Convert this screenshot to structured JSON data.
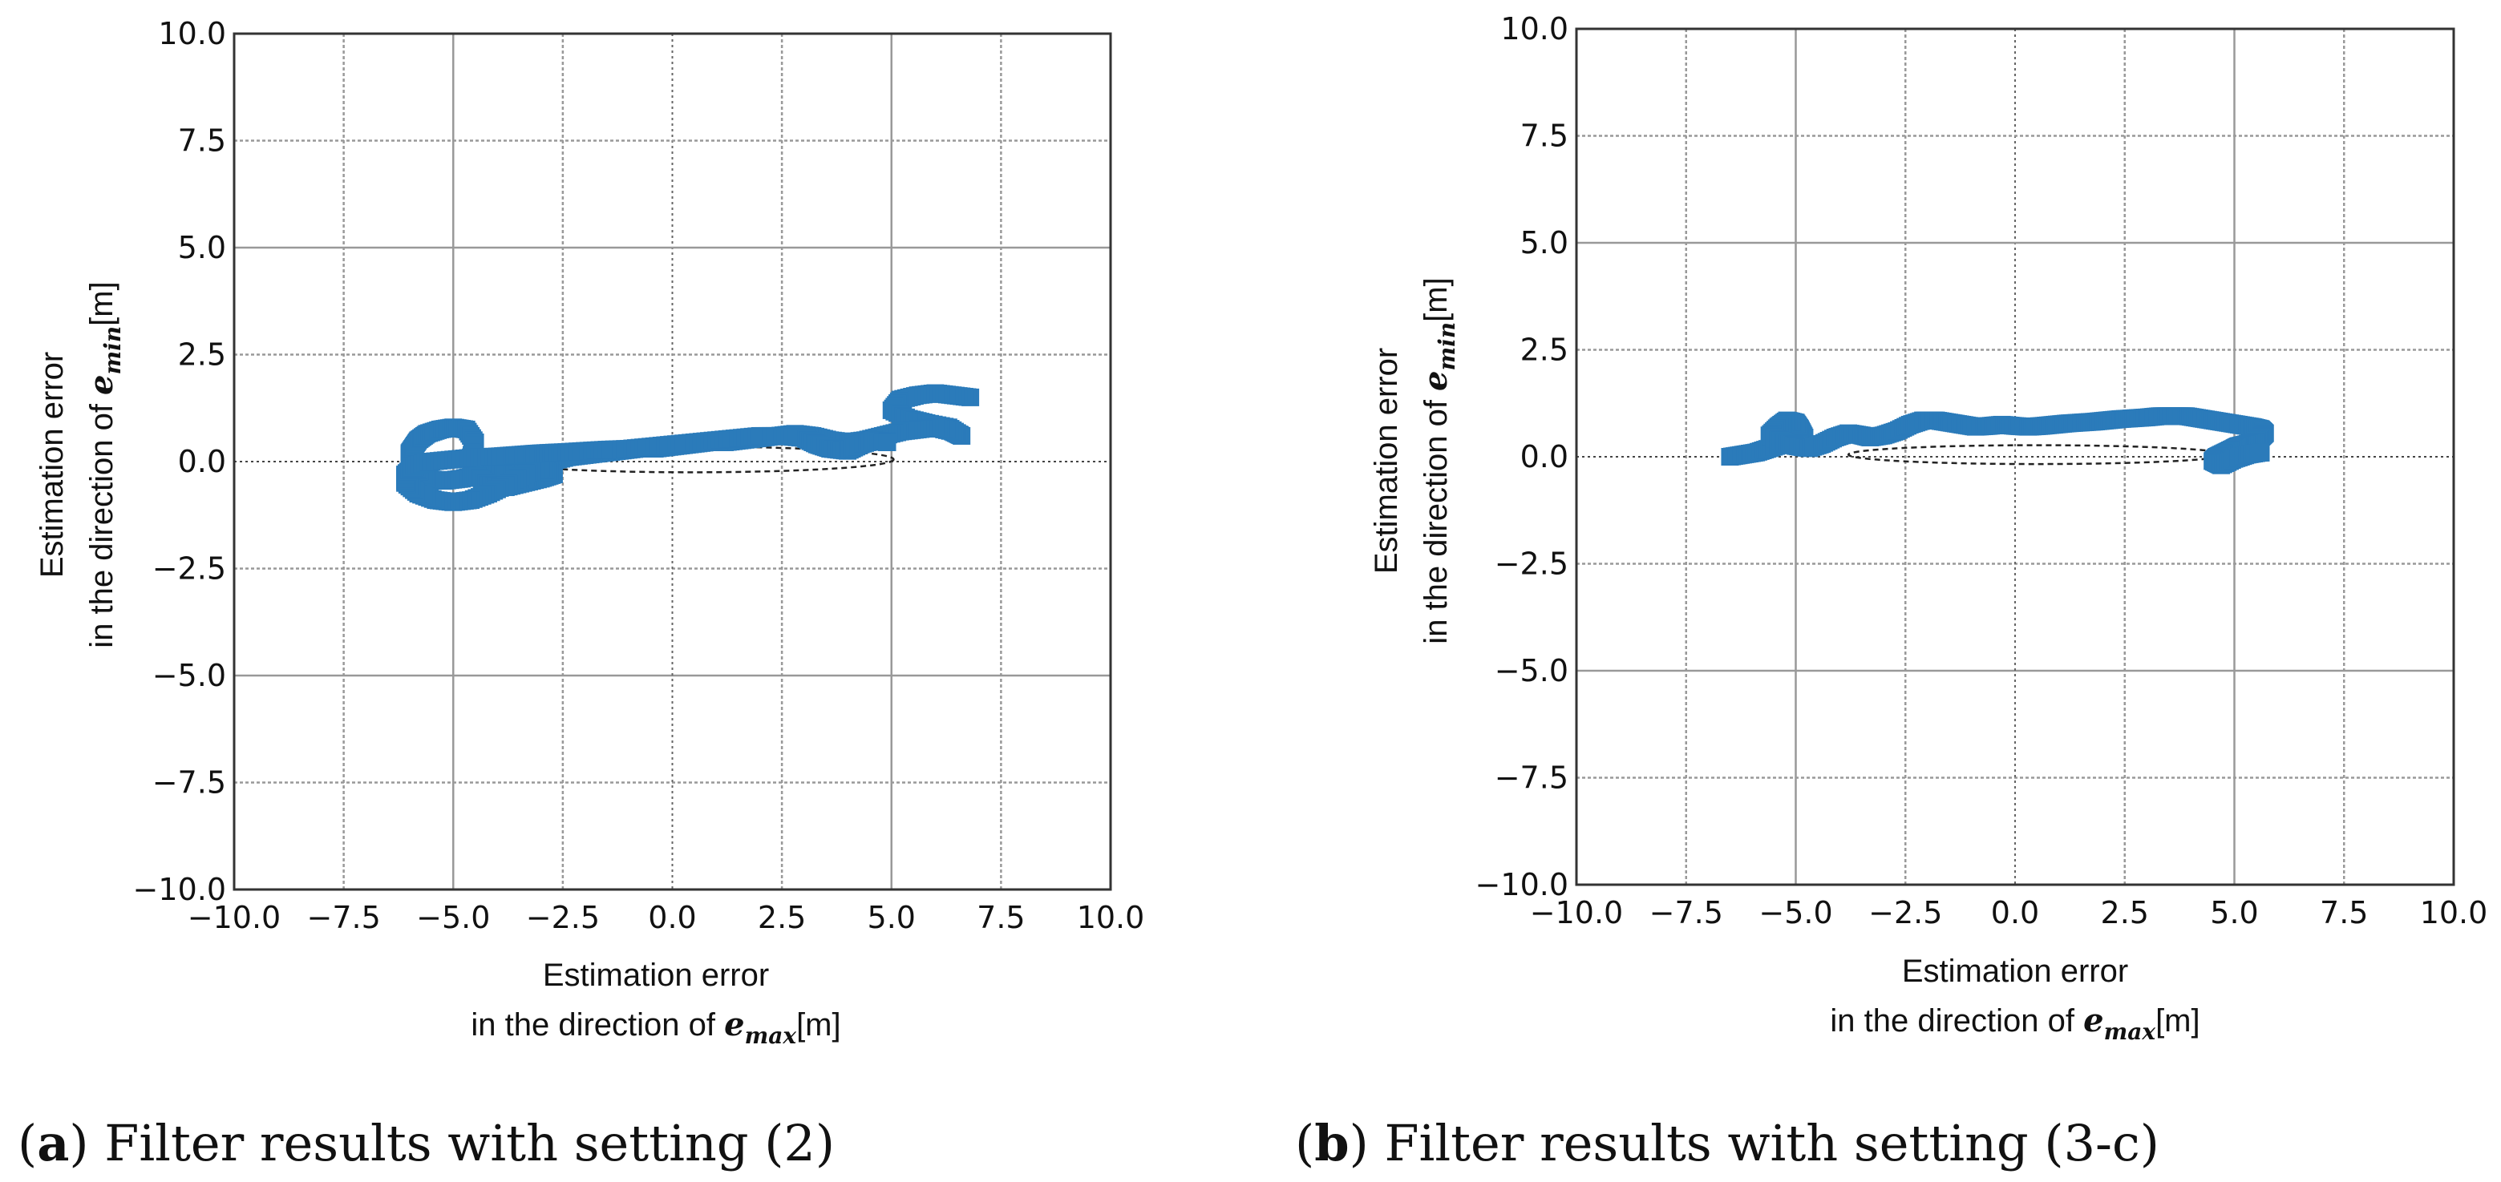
{
  "chart_data": [
    {
      "type": "scatter",
      "panel": "a",
      "caption_letter": "a",
      "caption_text": "Filter results with setting (2)",
      "xlabel": {
        "line1": "Estimation error",
        "line2_prefix": "in the direction of ",
        "symbol": "e",
        "subscript": "max",
        "unit": "[m]"
      },
      "ylabel": {
        "line1": "Estimation error",
        "line2_prefix": "in the direction of ",
        "symbol": "e",
        "subscript": "min",
        "unit": "[m]"
      },
      "xlim": [
        -10,
        10
      ],
      "ylim": [
        -10,
        10
      ],
      "xticks": [
        "−10.0",
        "−7.5",
        "−5.0",
        "−2.5",
        "0.0",
        "2.5",
        "5.0",
        "7.5",
        "10.0"
      ],
      "yticks": [
        "−10.0",
        "−7.5",
        "−5.0",
        "−2.5",
        "0.0",
        "2.5",
        "5.0",
        "7.5",
        "10.0"
      ],
      "grid": true,
      "series_color": "#2b7bba",
      "series": [
        {
          "name": "estimation error",
          "x": [
            6.8,
            6.4,
            6.0,
            5.6,
            5.2,
            5.0,
            5.4,
            5.8,
            6.3,
            6.6,
            6.4,
            6.0,
            5.6,
            5.2,
            4.8,
            4.4,
            4.0,
            3.6,
            3.2,
            2.8,
            2.4,
            2.0,
            1.6,
            1.2,
            0.8,
            0.4,
            0.0,
            -0.4,
            -0.8,
            -1.2,
            -1.6,
            -2.0,
            -2.4,
            -2.8,
            -3.2,
            -3.6,
            -4.0,
            -4.4,
            -4.8,
            -5.2,
            -5.6,
            -5.8,
            -6.0,
            -6.0,
            -5.9,
            -5.8,
            -5.6,
            -5.3,
            -5.0,
            -4.7,
            -4.5,
            -4.6,
            -4.5,
            -4.2,
            -3.8,
            -3.4,
            -3.0,
            -2.7,
            -3.0,
            -3.4,
            -3.8,
            -4.2,
            -4.6,
            -5.0,
            -5.4,
            -5.8,
            -6.1,
            -6.1,
            -5.9,
            -5.5,
            -5.0,
            -4.5,
            -4.0,
            -3.6,
            -3.2,
            -2.9,
            -2.5,
            -2.0,
            -1.5,
            -1.0,
            -0.5,
            0.0,
            0.5,
            1.0,
            1.5,
            2.0,
            2.5,
            3.0,
            3.3,
            3.6,
            4.0,
            4.3,
            4.6,
            4.9
          ],
          "y": [
            1.5,
            1.55,
            1.6,
            1.55,
            1.45,
            1.2,
            1.0,
            0.9,
            0.8,
            0.6,
            0.7,
            0.8,
            0.75,
            0.7,
            0.6,
            0.5,
            0.45,
            0.5,
            0.6,
            0.65,
            0.6,
            0.55,
            0.5,
            0.45,
            0.45,
            0.4,
            0.35,
            0.3,
            0.3,
            0.25,
            0.2,
            0.15,
            0.1,
            0.0,
            -0.1,
            -0.2,
            -0.25,
            -0.3,
            -0.4,
            -0.45,
            -0.4,
            -0.2,
            0.0,
            0.2,
            0.35,
            0.5,
            0.65,
            0.75,
            0.8,
            0.75,
            0.45,
            0.1,
            -0.3,
            -0.55,
            -0.6,
            -0.5,
            -0.4,
            -0.3,
            -0.15,
            -0.3,
            -0.55,
            -0.75,
            -0.9,
            -0.95,
            -0.9,
            -0.75,
            -0.5,
            -0.3,
            -0.1,
            0.0,
            0.05,
            0.1,
            0.12,
            0.15,
            0.18,
            0.2,
            0.22,
            0.25,
            0.28,
            0.3,
            0.35,
            0.4,
            0.45,
            0.5,
            0.55,
            0.6,
            0.6,
            0.55,
            0.4,
            0.3,
            0.25,
            0.4,
            0.5,
            0.45
          ]
        }
      ],
      "ellipse": {
        "cx": 0.45,
        "cy": 0.05,
        "rx": 4.6,
        "ry": 0.3,
        "style": "dashed"
      }
    },
    {
      "type": "scatter",
      "panel": "b",
      "caption_letter": "b",
      "caption_text": "Filter results with setting (3-c)",
      "xlabel": {
        "line1": "Estimation error",
        "line2_prefix": "in the direction of ",
        "symbol": "e",
        "subscript": "max",
        "unit": "[m]"
      },
      "ylabel": {
        "line1": "Estimation error",
        "line2_prefix": "in the direction of ",
        "symbol": "e",
        "subscript": "min",
        "unit": "[m]"
      },
      "xlim": [
        -10,
        10
      ],
      "ylim": [
        -10,
        10
      ],
      "xticks": [
        "−10.0",
        "−7.5",
        "−5.0",
        "−2.5",
        "0.0",
        "2.5",
        "5.0",
        "7.5",
        "10.0"
      ],
      "yticks": [
        "−10.0",
        "−7.5",
        "−5.0",
        "−2.5",
        "0.0",
        "2.5",
        "5.0",
        "7.5",
        "10.0"
      ],
      "grid": true,
      "series_color": "#2b7bba",
      "series": [
        {
          "name": "estimation error",
          "x": [
            -6.5,
            -6.2,
            -5.9,
            -5.6,
            -5.3,
            -5.0,
            -4.8,
            -4.9,
            -5.0,
            -5.2,
            -5.4,
            -5.6,
            -5.3,
            -5.0,
            -4.7,
            -4.4,
            -4.1,
            -3.8,
            -3.5,
            -3.3,
            -3.0,
            -2.7,
            -2.4,
            -2.1,
            -1.8,
            -1.5,
            -1.2,
            -0.9,
            -0.6,
            -0.3,
            0.0,
            0.3,
            0.6,
            0.9,
            1.2,
            1.5,
            1.8,
            2.1,
            2.4,
            2.7,
            3.0,
            3.3,
            3.6,
            3.9,
            4.2,
            4.5,
            4.8,
            5.1,
            5.4,
            5.6,
            5.7,
            5.6,
            5.5,
            5.3,
            5.1,
            5.0,
            4.8,
            4.6,
            4.5,
            4.7,
            5.0,
            5.3,
            5.6
          ],
          "y": [
            0.0,
            0.05,
            0.1,
            0.2,
            0.3,
            0.35,
            0.45,
            0.65,
            0.8,
            0.85,
            0.7,
            0.5,
            0.35,
            0.25,
            0.2,
            0.3,
            0.45,
            0.55,
            0.5,
            0.45,
            0.5,
            0.6,
            0.75,
            0.85,
            0.85,
            0.8,
            0.75,
            0.7,
            0.72,
            0.75,
            0.72,
            0.7,
            0.72,
            0.75,
            0.78,
            0.8,
            0.82,
            0.85,
            0.88,
            0.9,
            0.92,
            0.95,
            0.95,
            0.95,
            0.9,
            0.85,
            0.8,
            0.75,
            0.7,
            0.65,
            0.55,
            0.45,
            0.35,
            0.3,
            0.25,
            0.2,
            0.1,
            0.0,
            -0.1,
            -0.2,
            -0.05,
            0.05,
            0.1
          ]
        }
      ],
      "ellipse": {
        "cx": 0.5,
        "cy": 0.05,
        "rx": 4.3,
        "ry": 0.22,
        "style": "dashed"
      }
    }
  ]
}
